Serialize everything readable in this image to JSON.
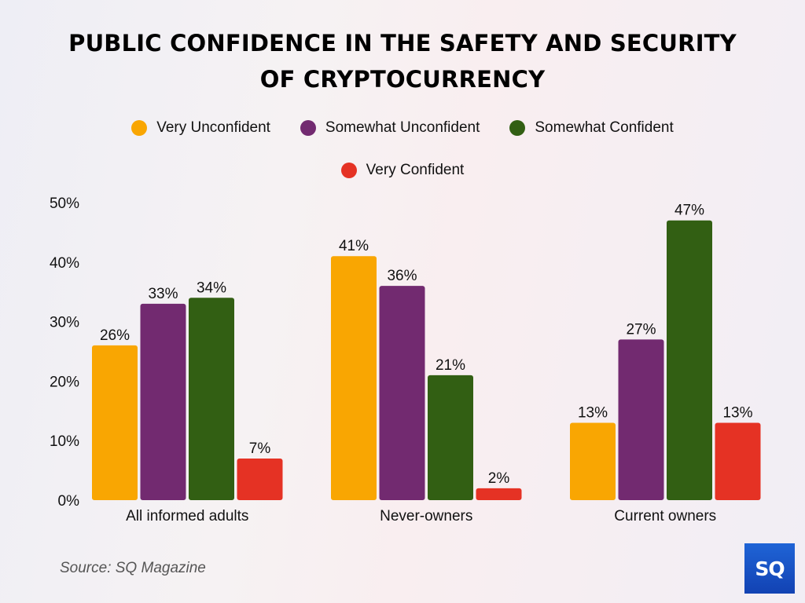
{
  "chart_data": {
    "type": "bar",
    "title": "PUBLIC CONFIDENCE IN THE SAFETY AND SECURITY OF CRYPTOCURRENCY",
    "title_lines": [
      "PUBLIC CONFIDENCE IN THE SAFETY AND SECURITY",
      "OF CRYPTOCURRENCY"
    ],
    "xlabel": "",
    "ylabel": "",
    "categories": [
      "All informed adults",
      "Never-owners",
      "Current owners"
    ],
    "series": [
      {
        "name": "Very Unconfident",
        "color": "#f9a602",
        "values": [
          26,
          41,
          13
        ],
        "labels": [
          "26%",
          "41%",
          "13%"
        ]
      },
      {
        "name": "Somewhat Unconfident",
        "color": "#722a70",
        "values": [
          33,
          36,
          27
        ],
        "labels": [
          "33%",
          "36%",
          "27%"
        ]
      },
      {
        "name": "Somewhat Confident",
        "color": "#325f13",
        "values": [
          34,
          21,
          47
        ],
        "labels": [
          "34%",
          "21%",
          "47%"
        ]
      },
      {
        "name": "Very Confident",
        "color": "#e53224",
        "values": [
          7,
          2,
          13
        ],
        "labels": [
          "7%",
          "2%",
          "13%"
        ]
      }
    ],
    "ylim": [
      0,
      50
    ],
    "yticks": [
      0,
      10,
      20,
      30,
      40,
      50
    ],
    "ytick_labels": [
      "0%",
      "10%",
      "20%",
      "30%",
      "40%",
      "50%"
    ],
    "grid": false,
    "legend_position": "top-center"
  },
  "source": "Source: SQ Magazine",
  "logo": {
    "text": "SQ",
    "color": "#1a55c9"
  }
}
